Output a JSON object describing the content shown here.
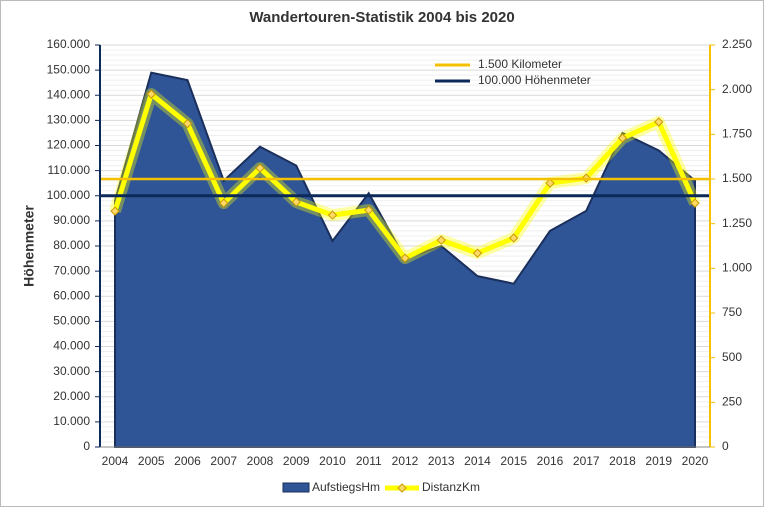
{
  "chart_data": {
    "type": "area",
    "title": "Wandertouren-Statistik 2004 bis 2020",
    "ylabel": "Höhenmeter",
    "categories": [
      "2004",
      "2005",
      "2006",
      "2007",
      "2008",
      "2009",
      "2010",
      "2011",
      "2012",
      "2013",
      "2014",
      "2015",
      "2016",
      "2017",
      "2018",
      "2019",
      "2020"
    ],
    "series": [
      {
        "name": "AufstiegsHm",
        "type": "area",
        "axis": "y",
        "color": "#2f5597",
        "values": [
          98000,
          149000,
          146000,
          106000,
          119500,
          112000,
          82000,
          101000,
          75000,
          80000,
          68000,
          65000,
          86000,
          94000,
          125000,
          118000,
          106000
        ]
      },
      {
        "name": "DistanzKm",
        "type": "line",
        "axis": "y2",
        "color": "#ffff00",
        "values": [
          1320,
          1975,
          1810,
          1365,
          1561,
          1371,
          1298,
          1326,
          1057,
          1158,
          1085,
          1170,
          1477,
          1505,
          1729,
          1819,
          1365
        ]
      }
    ],
    "reference_lines": [
      {
        "name": "1.500 Kilometer",
        "value": 1500,
        "axis": "y2",
        "color": "#f5c000"
      },
      {
        "name": "100.000 Höhenmeter",
        "value": 100000,
        "axis": "y",
        "color": "#0b2a5a"
      }
    ],
    "ylim": [
      0,
      160000
    ],
    "yticks": [
      {
        "value": 0,
        "label": "0"
      },
      {
        "value": 10000,
        "label": "10.000"
      },
      {
        "value": 20000,
        "label": "20.000"
      },
      {
        "value": 30000,
        "label": "30.000"
      },
      {
        "value": 40000,
        "label": "40.000"
      },
      {
        "value": 50000,
        "label": "50.000"
      },
      {
        "value": 60000,
        "label": "60.000"
      },
      {
        "value": 70000,
        "label": "70.000"
      },
      {
        "value": 80000,
        "label": "80.000"
      },
      {
        "value": 90000,
        "label": "90.000"
      },
      {
        "value": 100000,
        "label": "100.000"
      },
      {
        "value": 110000,
        "label": "110.000"
      },
      {
        "value": 120000,
        "label": "120.000"
      },
      {
        "value": 130000,
        "label": "130.000"
      },
      {
        "value": 140000,
        "label": "140.000"
      },
      {
        "value": 150000,
        "label": "150.000"
      },
      {
        "value": 160000,
        "label": "160.000"
      }
    ],
    "y2lim": [
      0,
      2250
    ],
    "y2ticks": [
      0,
      250,
      500,
      750,
      {
        "value": 1000,
        "label": "1.000"
      },
      {
        "value": 1250,
        "label": "1.250"
      },
      {
        "value": 1500,
        "label": "1.500"
      },
      {
        "value": 1750,
        "label": "1.750"
      },
      {
        "value": 2000,
        "label": "2.000"
      },
      {
        "value": 2250,
        "label": "2.250"
      }
    ],
    "grid": true
  }
}
